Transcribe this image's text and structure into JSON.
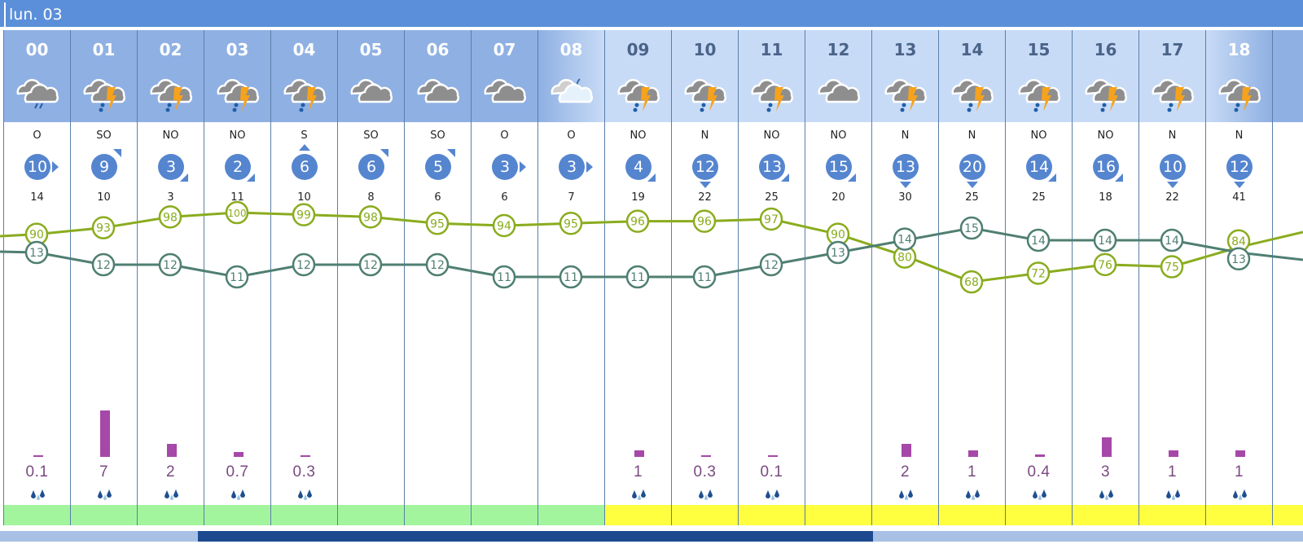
{
  "day_label": "lun. 03",
  "colors": {
    "header_night": "#8fb0e3",
    "header_day": "#c8dbf6",
    "humidity_line": "#8aac1e",
    "temperature_line": "#4f7f72",
    "precip_bar": "#a548a8",
    "band_green": "#a3f59d",
    "band_yellow": "#ffff40",
    "wind_circle": "#5585cf"
  },
  "hours": [
    {
      "hour": "00",
      "icon": "rain-cloud-icon",
      "period": "night",
      "wind_dir": "O",
      "wind_speed": "10",
      "wind_arrow": "right",
      "gust": "14",
      "humidity": 90,
      "temperature": 13,
      "precip": "0.1",
      "precip_value": 0.1,
      "band": "green"
    },
    {
      "hour": "01",
      "icon": "thunderstorm-icon",
      "period": "night",
      "wind_dir": "SO",
      "wind_speed": "9",
      "wind_arrow": "top-right",
      "gust": "10",
      "humidity": 93,
      "temperature": 12,
      "precip": "7",
      "precip_value": 7,
      "band": "green"
    },
    {
      "hour": "02",
      "icon": "thunderstorm-icon",
      "period": "night",
      "wind_dir": "NO",
      "wind_speed": "3",
      "wind_arrow": "bottom-right",
      "gust": "3",
      "humidity": 98,
      "temperature": 12,
      "precip": "2",
      "precip_value": 2,
      "band": "green"
    },
    {
      "hour": "03",
      "icon": "thunderstorm-icon",
      "period": "night",
      "wind_dir": "NO",
      "wind_speed": "2",
      "wind_arrow": "bottom-right",
      "gust": "11",
      "humidity": 100,
      "temperature": 11,
      "precip": "0.7",
      "precip_value": 0.7,
      "band": "green"
    },
    {
      "hour": "04",
      "icon": "thunderstorm-icon",
      "period": "night",
      "wind_dir": "S",
      "wind_speed": "6",
      "wind_arrow": "up",
      "gust": "10",
      "humidity": 99,
      "temperature": 12,
      "precip": "0.3",
      "precip_value": 0.3,
      "band": "green"
    },
    {
      "hour": "05",
      "icon": "cloudy-icon",
      "period": "night",
      "wind_dir": "SO",
      "wind_speed": "6",
      "wind_arrow": "top-right",
      "gust": "8",
      "humidity": 98,
      "temperature": 12,
      "precip": "",
      "precip_value": 0,
      "band": "green"
    },
    {
      "hour": "06",
      "icon": "cloudy-icon",
      "period": "night",
      "wind_dir": "SO",
      "wind_speed": "5",
      "wind_arrow": "top-right",
      "gust": "6",
      "humidity": 95,
      "temperature": 12,
      "precip": "",
      "precip_value": 0,
      "band": "green"
    },
    {
      "hour": "07",
      "icon": "cloudy-icon",
      "period": "night",
      "wind_dir": "O",
      "wind_speed": "3",
      "wind_arrow": "right",
      "gust": "6",
      "humidity": 94,
      "temperature": 11,
      "precip": "",
      "precip_value": 0,
      "band": "green"
    },
    {
      "hour": "08",
      "icon": "night-cloud-moon-icon",
      "period": "dawn",
      "wind_dir": "O",
      "wind_speed": "3",
      "wind_arrow": "right",
      "gust": "7",
      "humidity": 95,
      "temperature": 11,
      "precip": "",
      "precip_value": 0,
      "band": "green"
    },
    {
      "hour": "09",
      "icon": "thunderstorm-icon",
      "period": "day",
      "wind_dir": "NO",
      "wind_speed": "4",
      "wind_arrow": "bottom-right",
      "gust": "19",
      "humidity": 96,
      "temperature": 11,
      "precip": "1",
      "precip_value": 1,
      "band": "yellow"
    },
    {
      "hour": "10",
      "icon": "thunderstorm-icon",
      "period": "day",
      "wind_dir": "N",
      "wind_speed": "12",
      "wind_arrow": "down",
      "gust": "22",
      "humidity": 96,
      "temperature": 11,
      "precip": "0.3",
      "precip_value": 0.3,
      "band": "yellow"
    },
    {
      "hour": "11",
      "icon": "thunderstorm-icon",
      "period": "day",
      "wind_dir": "NO",
      "wind_speed": "13",
      "wind_arrow": "bottom-right",
      "gust": "25",
      "humidity": 97,
      "temperature": 12,
      "precip": "0.1",
      "precip_value": 0.1,
      "band": "yellow"
    },
    {
      "hour": "12",
      "icon": "cloudy-icon",
      "period": "day",
      "wind_dir": "NO",
      "wind_speed": "15",
      "wind_arrow": "bottom-right",
      "gust": "20",
      "humidity": 90,
      "temperature": 13,
      "precip": "",
      "precip_value": 0,
      "band": "yellow"
    },
    {
      "hour": "13",
      "icon": "thunderstorm-icon",
      "period": "day",
      "wind_dir": "N",
      "wind_speed": "13",
      "wind_arrow": "down",
      "gust": "30",
      "humidity": 80,
      "temperature": 14,
      "precip": "2",
      "precip_value": 2,
      "band": "yellow"
    },
    {
      "hour": "14",
      "icon": "thunderstorm-icon",
      "period": "day",
      "wind_dir": "N",
      "wind_speed": "20",
      "wind_arrow": "down",
      "gust": "25",
      "humidity": 68,
      "temperature": 15,
      "precip": "1",
      "precip_value": 1,
      "band": "yellow"
    },
    {
      "hour": "15",
      "icon": "thunderstorm-icon",
      "period": "day",
      "wind_dir": "NO",
      "wind_speed": "14",
      "wind_arrow": "bottom-right",
      "gust": "25",
      "humidity": 72,
      "temperature": 14,
      "precip": "0.4",
      "precip_value": 0.4,
      "band": "yellow"
    },
    {
      "hour": "16",
      "icon": "thunderstorm-icon",
      "period": "day",
      "wind_dir": "NO",
      "wind_speed": "16",
      "wind_arrow": "bottom-right",
      "gust": "18",
      "humidity": 76,
      "temperature": 14,
      "precip": "3",
      "precip_value": 3,
      "band": "yellow"
    },
    {
      "hour": "17",
      "icon": "thunderstorm-icon",
      "period": "day",
      "wind_dir": "N",
      "wind_speed": "10",
      "wind_arrow": "down",
      "gust": "22",
      "humidity": 75,
      "temperature": 14,
      "precip": "1",
      "precip_value": 1,
      "band": "yellow"
    },
    {
      "hour": "18",
      "icon": "thunderstorm-icon",
      "period": "dusk",
      "wind_dir": "N",
      "wind_speed": "12",
      "wind_arrow": "down",
      "gust": "41",
      "humidity": 84,
      "temperature": 13,
      "precip": "1",
      "precip_value": 1,
      "band": "yellow"
    }
  ]
}
